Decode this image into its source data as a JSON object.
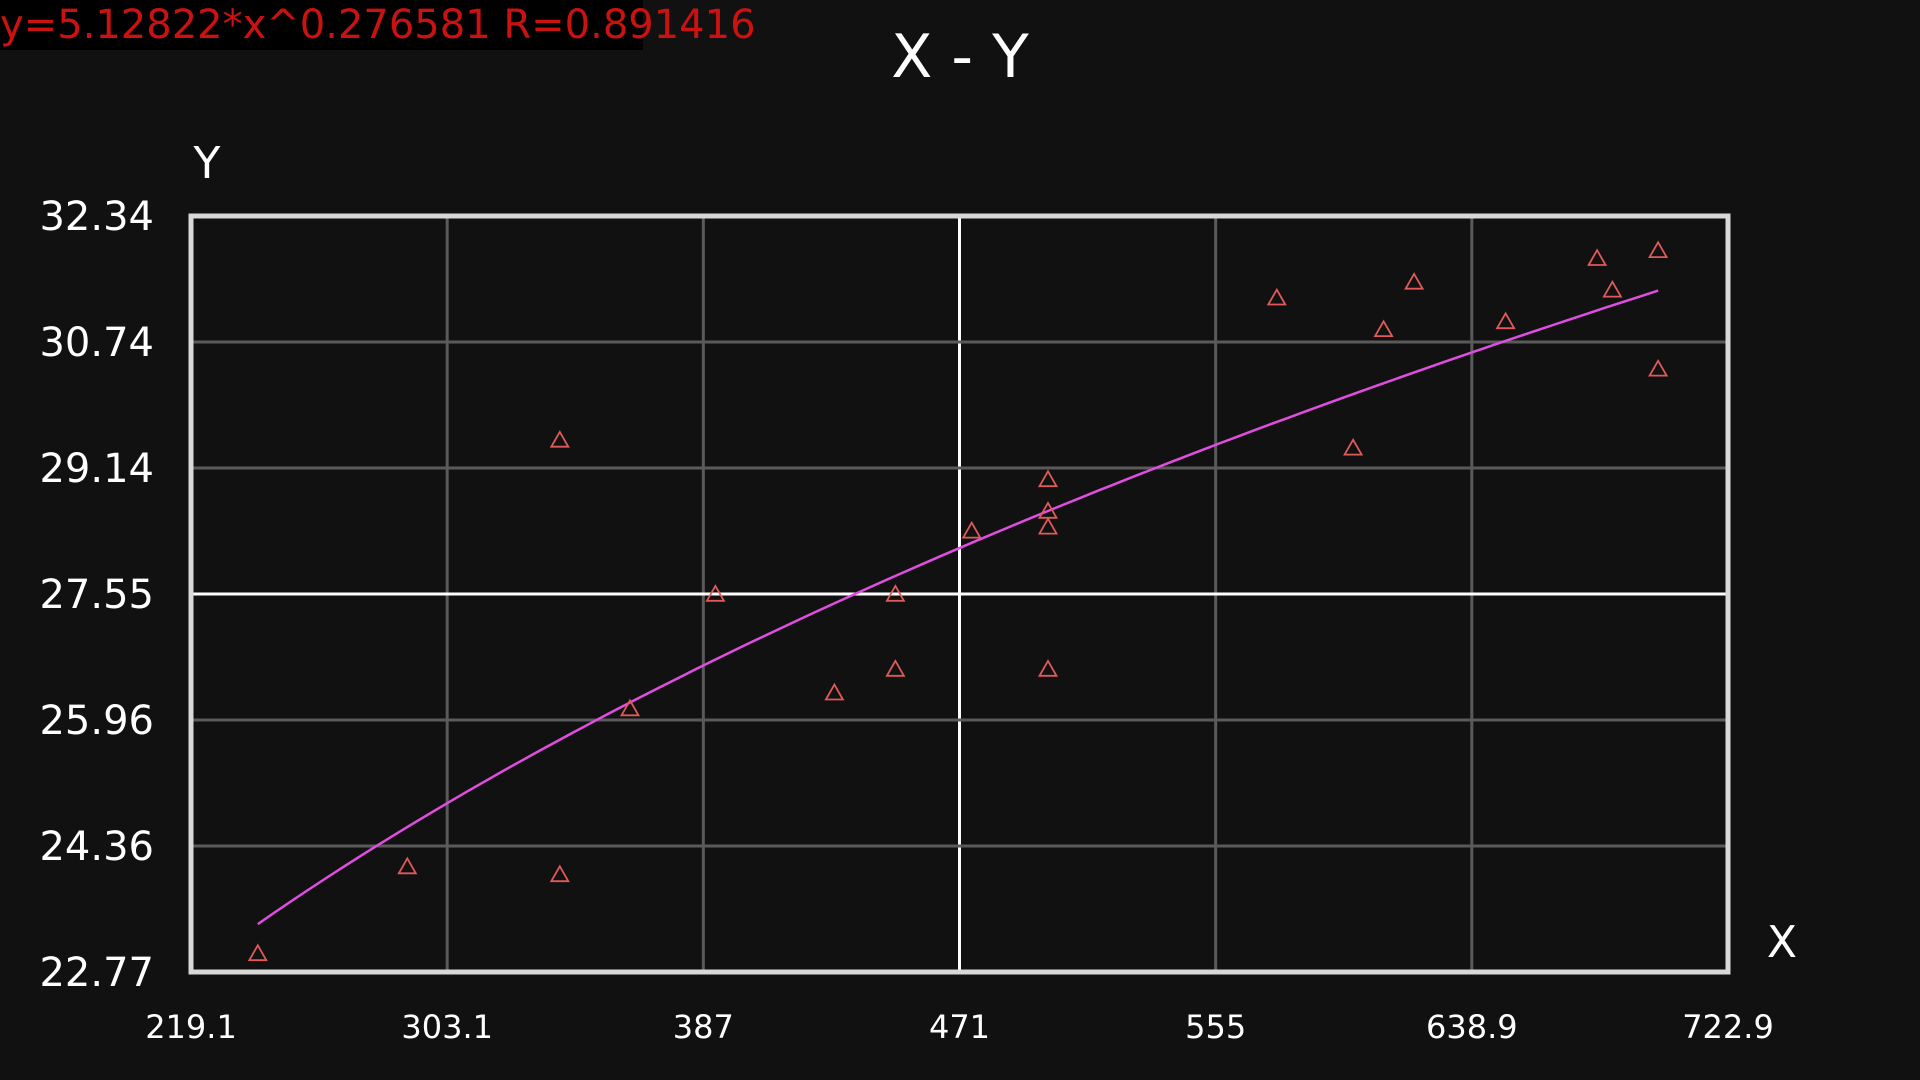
{
  "colors": {
    "background": "#111111",
    "text": "#ffffff",
    "grid": "#5a5a5a",
    "center_grid": "#ffffff",
    "frame": "#d8d8d8",
    "points": "#e05a5a",
    "fit_line": "#e04ee0",
    "equation": "#cc1111"
  },
  "chart_data": {
    "type": "scatter",
    "title": "X - Y",
    "xlabel": "X",
    "ylabel": "Y",
    "xlim": [
      219.1,
      722.9
    ],
    "ylim": [
      22.77,
      32.34
    ],
    "x_ticks": [
      "219.1",
      "303.1",
      "387",
      "471",
      "555",
      "638.9",
      "722.9"
    ],
    "y_ticks": [
      "22.77",
      "24.36",
      "25.96",
      "27.55",
      "29.14",
      "30.74",
      "32.34"
    ],
    "grid": true,
    "highlighted_grid": {
      "x": 471,
      "y": 27.55
    },
    "marker": "triangle-open",
    "fit": {
      "type": "power",
      "equation": "y=5.12822*x^0.276581 R=0.891416",
      "a": 5.12822,
      "b": 0.276581,
      "x_range": [
        241,
        700
      ]
    },
    "points": [
      {
        "x": 241,
        "y": 23.0
      },
      {
        "x": 290,
        "y": 24.1
      },
      {
        "x": 340,
        "y": 24.0
      },
      {
        "x": 340,
        "y": 29.5
      },
      {
        "x": 363,
        "y": 26.1
      },
      {
        "x": 391,
        "y": 27.55
      },
      {
        "x": 430,
        "y": 26.3
      },
      {
        "x": 450,
        "y": 26.6
      },
      {
        "x": 450,
        "y": 27.55
      },
      {
        "x": 475,
        "y": 28.35
      },
      {
        "x": 500,
        "y": 26.6
      },
      {
        "x": 500,
        "y": 28.4
      },
      {
        "x": 500,
        "y": 28.6
      },
      {
        "x": 500,
        "y": 29.0
      },
      {
        "x": 575,
        "y": 31.3
      },
      {
        "x": 600,
        "y": 29.4
      },
      {
        "x": 610,
        "y": 30.9
      },
      {
        "x": 620,
        "y": 31.5
      },
      {
        "x": 650,
        "y": 31.0
      },
      {
        "x": 680,
        "y": 31.8
      },
      {
        "x": 685,
        "y": 31.4
      },
      {
        "x": 700,
        "y": 30.4
      },
      {
        "x": 700,
        "y": 31.9
      }
    ]
  }
}
